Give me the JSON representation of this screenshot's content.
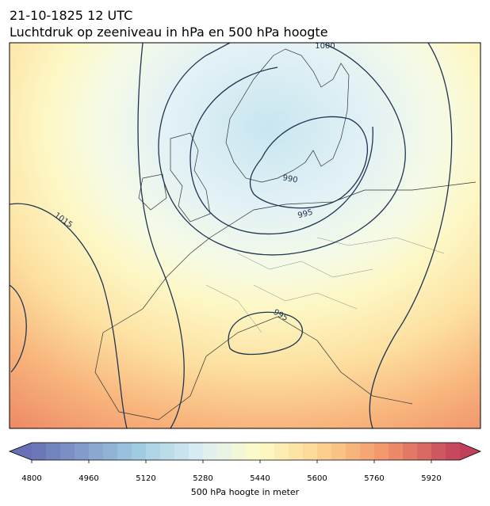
{
  "header": {
    "title": "21-10-1825 12 UTC",
    "subtitle": "Luchtdruk op zeeniveau in hPa en 500 hPa hoogte"
  },
  "contour_labels": [
    1000,
    990,
    995,
    995,
    1015
  ],
  "colorbar": {
    "label": "500 hPa hoogte in meter",
    "lim": [
      4800,
      6000
    ],
    "ticks": [
      4800,
      4960,
      5120,
      5280,
      5440,
      5600,
      5760,
      5920
    ]
  }
}
